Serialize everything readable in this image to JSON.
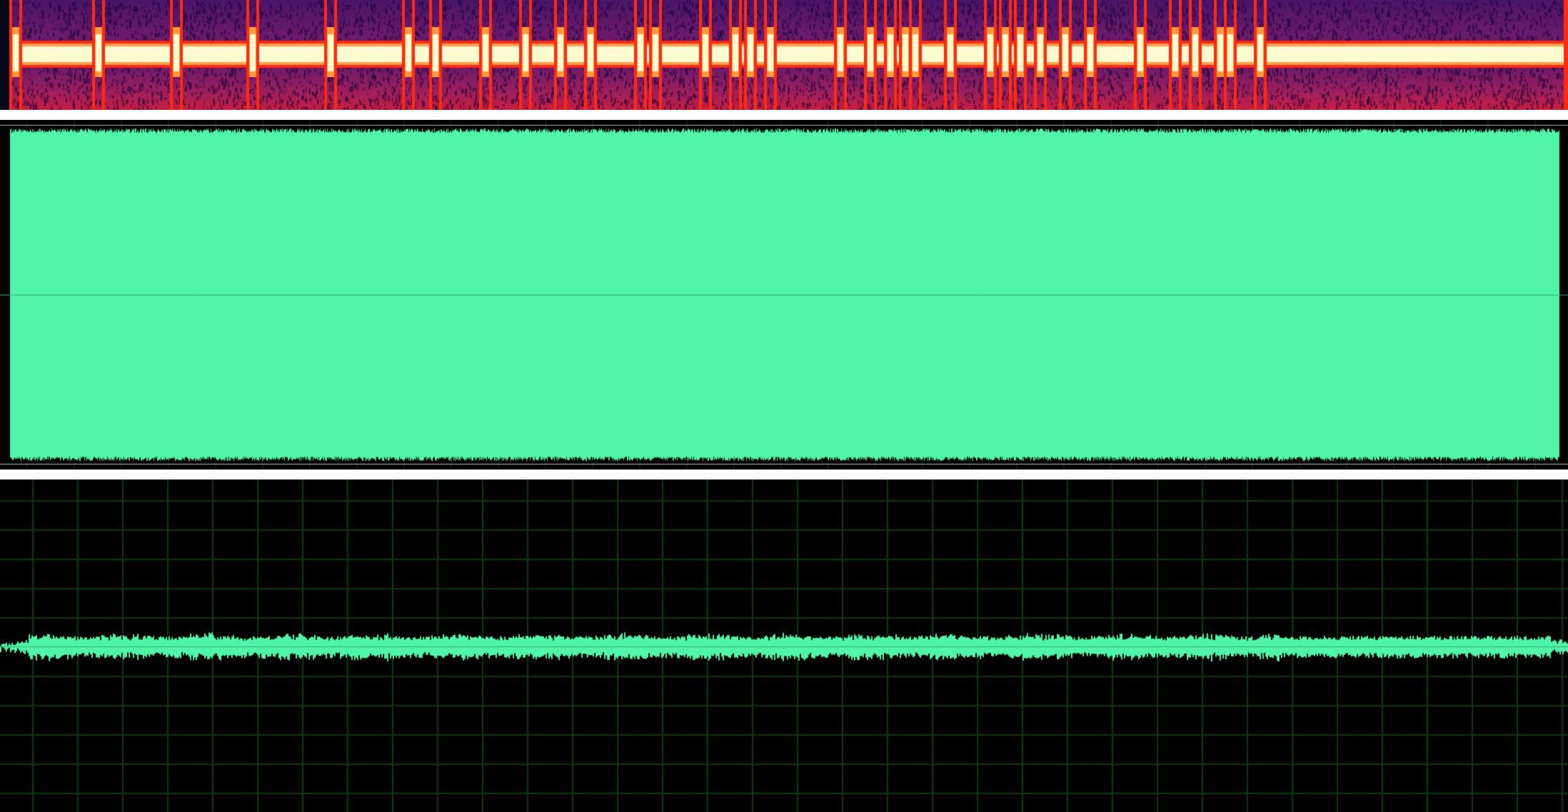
{
  "panels": {
    "spectrogram": {
      "icon": "spectrogram-view",
      "colormap": "magma"
    },
    "waveform": {
      "icon": "waveform-view",
      "fill_color": "#50f5a8",
      "background": "#000000"
    },
    "oscilloscope": {
      "icon": "oscilloscope-view",
      "trace_color": "#50f5a8",
      "grid_color": "#0c3a0c",
      "background": "#000000"
    }
  },
  "colors": {
    "separator": "#ffffff",
    "spectrogram_band": "#fffbd0",
    "spectrogram_edge": "#ff2a10",
    "spectrogram_bg": "#5a1a70"
  }
}
